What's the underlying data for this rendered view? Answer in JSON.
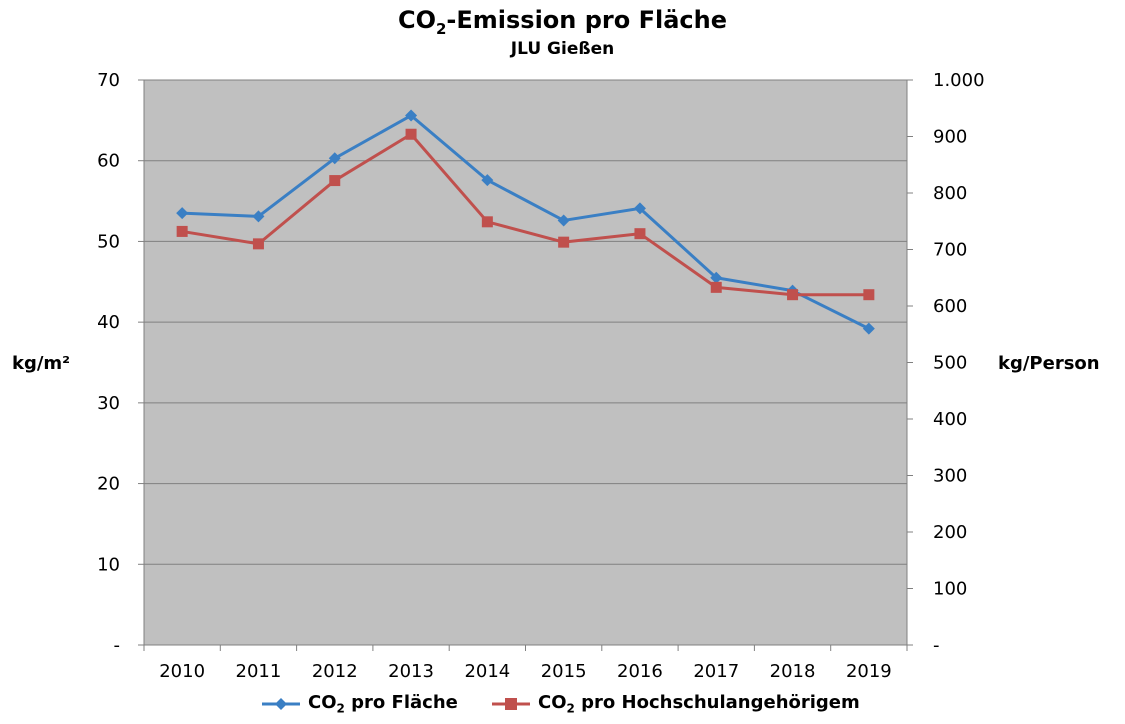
{
  "title": {
    "prefix": "CO",
    "sub": "2",
    "suffix": "-Emission  pro Fläche"
  },
  "subtitle": "JLU Gießen",
  "colors": {
    "plot_bg": "#c0c0c0",
    "grid": "#808080",
    "series1": "#3a7fc4",
    "series2": "#c0504d"
  },
  "legend": [
    {
      "prefix": "CO",
      "sub": "2",
      "suffix": " pro Fläche"
    },
    {
      "prefix": "CO",
      "sub": "2",
      "suffix": " pro Hochschulangehörigem"
    }
  ],
  "chart_data": {
    "type": "line",
    "title": "CO2-Emission pro Fläche",
    "subtitle": "JLU Gießen",
    "categories": [
      "2010",
      "2011",
      "2012",
      "2013",
      "2014",
      "2015",
      "2016",
      "2017",
      "2018",
      "2019"
    ],
    "series": [
      {
        "name": "CO2 pro Fläche",
        "axis": "left",
        "marker": "diamond",
        "values": [
          53.5,
          53.1,
          60.3,
          65.6,
          57.6,
          52.6,
          54.1,
          45.5,
          43.9,
          39.2
        ]
      },
      {
        "name": "CO2 pro Hochschulangehörigem",
        "axis": "right",
        "marker": "square",
        "values": [
          732,
          710,
          822,
          904,
          749,
          713,
          728,
          633,
          620,
          620
        ]
      }
    ],
    "ylabel_left": "kg/m²",
    "ylabel_right": "kg/Person",
    "ylim_left": [
      0,
      70
    ],
    "ylim_right": [
      0,
      1000
    ],
    "yticks_left": [
      "-",
      "10",
      "20",
      "30",
      "40",
      "50",
      "60",
      "70"
    ],
    "yticks_right": [
      "-",
      "100",
      "200",
      "300",
      "400",
      "500",
      "600",
      "700",
      "800",
      "900",
      "1.000"
    ],
    "grid": true,
    "legend_position": "bottom"
  }
}
